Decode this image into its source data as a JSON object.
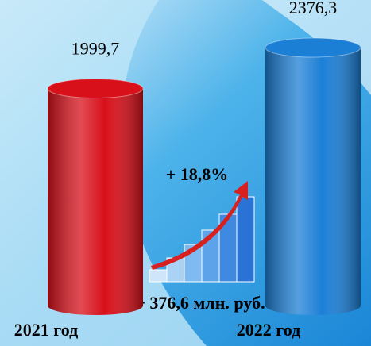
{
  "chart_data": {
    "type": "cylinder",
    "categories": [
      "2021 год",
      "2022 год"
    ],
    "values": [
      1999.7,
      2376.3
    ],
    "value_labels": [
      "1999,7",
      "2376,3"
    ],
    "colors": [
      "#d8101a",
      "#1c7fd6"
    ],
    "annotations": [
      "+ 18,8%",
      "+ 376,6 млн. руб."
    ]
  }
}
